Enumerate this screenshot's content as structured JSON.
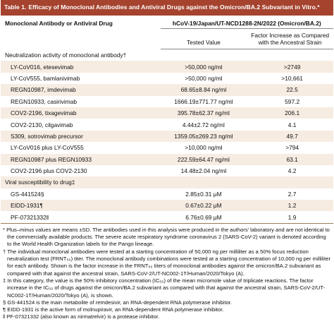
{
  "title": {
    "label": "Table 1.",
    "text": "Efficacy of Monoclonal Antibodies and Antiviral Drugs against the Omicron/BA.2 Subvariant in Vitro.*"
  },
  "header": {
    "col1": "Monoclonal Antibody or Antiviral Drug",
    "group": "hCoV-19/Japan/UT-NCD1288-2N/2022 (Omicron/BA.2)",
    "col2": "Tested Value",
    "col3": "Factor Increase as Compared with the Ancestral Strain"
  },
  "sections": [
    {
      "label": "Neutralization activity of monoclonal antibody†",
      "rows": [
        [
          "LY-CoV016, etesevimab",
          ">50,000 ng/ml",
          ">2749"
        ],
        [
          "LY-CoV555, bamlanivimab",
          ">50,000 ng/ml",
          ">10,661"
        ],
        [
          "REGN10987, imdevimab",
          "68.65±8.84 ng/ml",
          "22.5"
        ],
        [
          "REGN10933, casirivimab",
          "1666.19±771.77 ng/ml",
          "597.2"
        ],
        [
          "COV2-2196, tixagevimab",
          "395.78±62.37 ng/ml",
          "206.1"
        ],
        [
          "COV2-2130, cilgavimab",
          "4.44±2.72 ng/ml",
          "4.1"
        ],
        [
          "S309, sotrovimab precursor",
          "1359.05±269.23 ng/ml",
          "49.7"
        ],
        [
          "LY-CoV016 plus LY-CoV555",
          ">10,000 ng/ml",
          ">794"
        ],
        [
          "REGN10987 plus REGN10933",
          "222.59±64.47 ng/ml",
          "63.1"
        ],
        [
          "COV2-2196 plus COV2-2130",
          "14.48±2.04 ng/ml",
          "4.2"
        ]
      ]
    },
    {
      "label": "Viral susceptibility to drug‡",
      "rows": [
        [
          "GS-441524§",
          "2.85±0.31 μM",
          "2.7"
        ],
        [
          "EIDD-1931¶",
          "0.67±0.22 μM",
          "1.2"
        ],
        [
          "PF-07321332‖",
          "6.76±0.69 μM",
          "1.9"
        ]
      ]
    }
  ],
  "footnotes": [
    "* Plus–minus values are means ±SD. The antibodies used in this analysis were produced in the authors' laboratory and are not identical to the commercially available products. The severe acute respiratory syndrome coronavirus 2 (SARS-CoV-2) variant is denoted according to the World Health Organization labels for the Pango lineage.",
    "† The individual monoclonal antibodies were tested at a starting concentration of 50,000 ng per milliliter as a 50% focus reduction neutralization test (FRNT₅₀) titer. The monoclonal antibody combinations were tested at a starting concentration of 10,000 ng per milliliter for each antibody. Shown is the factor increase in the FRNT₅₀ titers of monoclonal antibodies against the omicron/BA.2 subvariant as compared with that against the ancestral strain, SARS-CoV-2/UT-NC002-1T/Human/2020/Tokyo (A).",
    "‡ In this category, the value is the 50% inhibitory concentration (IC₅₀) of the mean micromole value of triplicate reactions. The factor increase in the IC₅₀ of drugs against the omicron/BA.2 subvariant as compared with that against the ancestral strain, SARS-CoV-2/UT-NC002-1T/Human/2020/Tokyo (A), is shown.",
    "§ GS-441524 is the main metabolite of remdesivir, an RNA-dependent RNA polymerase inhibitor.",
    "¶ EIDD-1931 is the active form of molnupiravir, an RNA-dependent RNA polymerase inhibitor.",
    "‖ PF-07321332 (also known as nirmatrelvir) is a protease inhibitor."
  ]
}
